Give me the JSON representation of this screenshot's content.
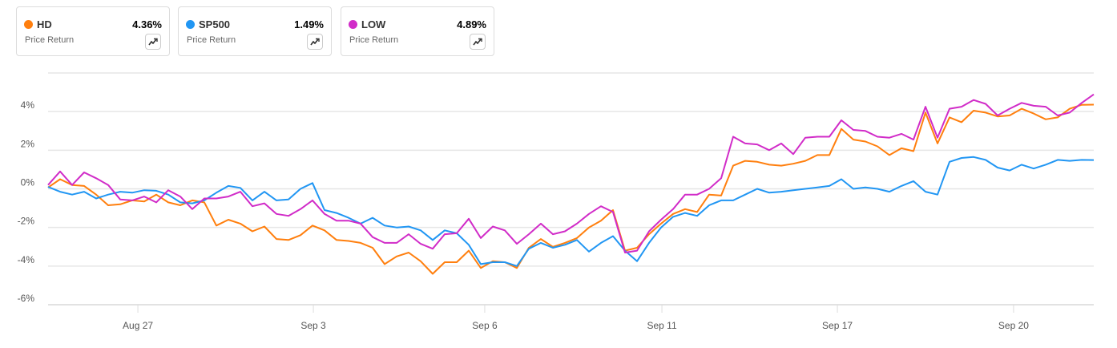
{
  "legend_cards": [
    {
      "symbol": "HD",
      "value": "4.36%",
      "sub": "Price Return",
      "color": "#ff7f0e",
      "icon": "trend-chart-icon"
    },
    {
      "symbol": "SP500",
      "value": "1.49%",
      "sub": "Price Return",
      "color": "#2196f3",
      "icon": "trend-chart-icon"
    },
    {
      "symbol": "LOW",
      "value": "4.89%",
      "sub": "Price Return",
      "color": "#d12cc8",
      "icon": "trend-chart-icon"
    }
  ],
  "chart_data": {
    "type": "line",
    "ylim": [
      -6,
      6
    ],
    "y_ticks": [
      {
        "v": 4,
        "label": "4%"
      },
      {
        "v": 2,
        "label": "2%"
      },
      {
        "v": 0,
        "label": "0%"
      },
      {
        "v": -2,
        "label": "-2%"
      },
      {
        "v": -4,
        "label": "-4%"
      },
      {
        "v": -6,
        "label": "-6%"
      }
    ],
    "x_ticks": [
      {
        "label": "Aug 27",
        "index": 7.47
      },
      {
        "label": "Sep 3",
        "index": 22.07
      },
      {
        "label": "Sep 6",
        "index": 36.33
      },
      {
        "label": "Sep 11",
        "index": 51.07
      },
      {
        "label": "Sep 17",
        "index": 65.67
      },
      {
        "label": "Sep 20",
        "index": 80.33
      }
    ],
    "grid": true,
    "series": [
      {
        "name": "HD",
        "color": "#ff7f0e",
        "values": [
          0.07,
          0.5,
          0.2,
          0.15,
          -0.3,
          -0.85,
          -0.8,
          -0.6,
          -0.65,
          -0.3,
          -0.7,
          -0.85,
          -0.6,
          -0.7,
          -1.9,
          -1.6,
          -1.8,
          -2.2,
          -1.95,
          -2.6,
          -2.65,
          -2.4,
          -1.9,
          -2.15,
          -2.65,
          -2.7,
          -2.8,
          -3.05,
          -3.9,
          -3.5,
          -3.3,
          -3.75,
          -4.4,
          -3.8,
          -3.8,
          -3.2,
          -4.1,
          -3.75,
          -3.8,
          -4.1,
          -3.05,
          -2.6,
          -3.0,
          -2.8,
          -2.55,
          -2.0,
          -1.65,
          -1.1,
          -3.2,
          -3.05,
          -2.35,
          -1.8,
          -1.3,
          -1.05,
          -1.2,
          -0.3,
          -0.35,
          1.2,
          1.45,
          1.4,
          1.25,
          1.2,
          1.3,
          1.45,
          1.75,
          1.75,
          3.1,
          2.55,
          2.45,
          2.2,
          1.75,
          2.1,
          1.95,
          3.95,
          2.35,
          3.7,
          3.45,
          4.05,
          3.95,
          3.75,
          3.8,
          4.15,
          3.9,
          3.6,
          3.7,
          4.15,
          4.35,
          4.36
        ]
      },
      {
        "name": "SP500",
        "color": "#2196f3",
        "values": [
          0.1,
          -0.15,
          -0.3,
          -0.15,
          -0.5,
          -0.3,
          -0.15,
          -0.2,
          -0.07,
          -0.1,
          -0.3,
          -0.7,
          -0.75,
          -0.6,
          -0.2,
          0.15,
          0.05,
          -0.6,
          -0.15,
          -0.6,
          -0.55,
          0,
          0.3,
          -1.1,
          -1.25,
          -1.5,
          -1.8,
          -1.5,
          -1.9,
          -2.0,
          -1.95,
          -2.15,
          -2.65,
          -2.15,
          -2.3,
          -2.9,
          -3.9,
          -3.8,
          -3.8,
          -4.0,
          -3.1,
          -2.8,
          -3.05,
          -2.9,
          -2.65,
          -3.25,
          -2.8,
          -2.45,
          -3.2,
          -3.75,
          -2.8,
          -2.0,
          -1.45,
          -1.25,
          -1.4,
          -0.85,
          -0.6,
          -0.6,
          -0.3,
          0,
          -0.2,
          -0.15,
          -0.07,
          0,
          0.07,
          0.15,
          0.5,
          0,
          0.07,
          0,
          -0.15,
          0.15,
          0.4,
          -0.15,
          -0.3,
          1.4,
          1.6,
          1.65,
          1.5,
          1.1,
          0.95,
          1.25,
          1.05,
          1.25,
          1.5,
          1.45,
          1.5,
          1.49
        ]
      },
      {
        "name": "LOW",
        "color": "#d12cc8",
        "values": [
          0.2,
          0.9,
          0.2,
          0.85,
          0.55,
          0.2,
          -0.55,
          -0.6,
          -0.4,
          -0.7,
          -0.07,
          -0.4,
          -1.05,
          -0.5,
          -0.5,
          -0.4,
          -0.15,
          -0.9,
          -0.75,
          -1.3,
          -1.4,
          -1.05,
          -0.6,
          -1.3,
          -1.65,
          -1.65,
          -1.8,
          -2.5,
          -2.8,
          -2.8,
          -2.35,
          -2.85,
          -3.1,
          -2.35,
          -2.3,
          -1.55,
          -2.55,
          -1.95,
          -2.15,
          -2.85,
          -2.35,
          -1.8,
          -2.35,
          -2.2,
          -1.8,
          -1.3,
          -0.9,
          -1.2,
          -3.3,
          -3.2,
          -2.2,
          -1.6,
          -1.05,
          -0.3,
          -0.3,
          0,
          0.55,
          2.7,
          2.35,
          2.3,
          2.0,
          2.35,
          1.8,
          2.65,
          2.7,
          2.7,
          3.55,
          3.05,
          3.0,
          2.7,
          2.65,
          2.85,
          2.55,
          4.25,
          2.65,
          4.15,
          4.25,
          4.6,
          4.4,
          3.8,
          4.15,
          4.45,
          4.3,
          4.25,
          3.8,
          3.95,
          4.45,
          4.89
        ]
      }
    ]
  }
}
